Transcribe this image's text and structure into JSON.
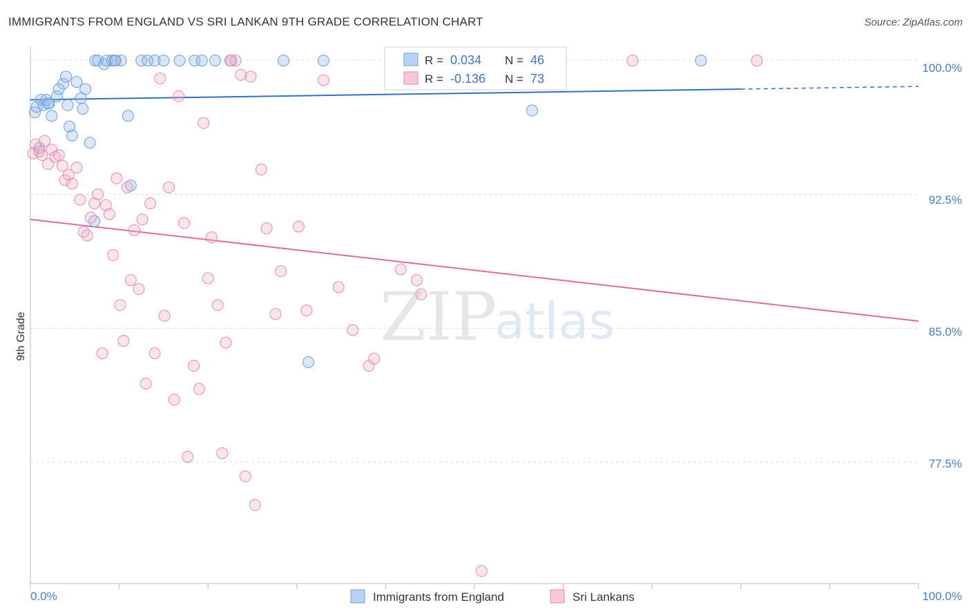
{
  "title": "IMMIGRANTS FROM ENGLAND VS SRI LANKAN 9TH GRADE CORRELATION CHART",
  "source": "Source: ZipAtlas.com",
  "watermark": {
    "zip": "ZIP",
    "atlas": "atlas"
  },
  "colors": {
    "blue": "#6f9fe0",
    "blue_line": "#2f6fcc",
    "pink": "#ea8aac",
    "pink_line": "#e0699a",
    "grid": "#dddddd"
  },
  "chart_data": {
    "type": "scatter",
    "title": "IMMIGRANTS FROM ENGLAND VS SRI LANKAN 9TH GRADE CORRELATION CHART",
    "xlabel": "",
    "ylabel": "9th Grade",
    "xlim": [
      0,
      100
    ],
    "ylim": [
      70.7,
      100.8
    ],
    "x_tick_labels": [
      "0.0%",
      "100.0%"
    ],
    "y_ticks": [
      100.0,
      92.5,
      85.0,
      77.5
    ],
    "y_tick_labels": [
      "100.0%",
      "92.5%",
      "85.0%",
      "77.5%"
    ],
    "legend_position": "top-center",
    "legend_bottom": [
      "Immigrants from England",
      "Sri Lankans"
    ],
    "stats": [
      {
        "r_label": "R = ",
        "r_value": "0.034",
        "n_label": "N = ",
        "n_value": "46"
      },
      {
        "r_label": "R = ",
        "r_value": "-0.136",
        "n_label": "N = ",
        "n_value": "73"
      }
    ],
    "series": [
      {
        "name": "Immigrants from England",
        "color": "#6f9fe0",
        "trend": {
          "x0": 0,
          "y0": 97.8,
          "x1": 80,
          "y1": 98.4,
          "dash_to": 100,
          "dash_y": 98.55
        },
        "points": [
          [
            0.5,
            97.1
          ],
          [
            0.7,
            97.4
          ],
          [
            1.0,
            95.1
          ],
          [
            1.2,
            97.8
          ],
          [
            1.5,
            97.5
          ],
          [
            1.8,
            97.8
          ],
          [
            2.1,
            97.6
          ],
          [
            2.4,
            96.9
          ],
          [
            3.0,
            98.0
          ],
          [
            3.2,
            98.4
          ],
          [
            3.7,
            98.7
          ],
          [
            4.0,
            99.1
          ],
          [
            4.2,
            97.5
          ],
          [
            4.4,
            96.3
          ],
          [
            4.7,
            95.8
          ],
          [
            5.2,
            98.8
          ],
          [
            5.7,
            97.9
          ],
          [
            5.9,
            97.3
          ],
          [
            6.2,
            98.4
          ],
          [
            6.7,
            95.4
          ],
          [
            7.3,
            100.0
          ],
          [
            7.6,
            100.0
          ],
          [
            8.3,
            99.8
          ],
          [
            8.6,
            100.0
          ],
          [
            9.2,
            100.0
          ],
          [
            9.6,
            100.0
          ],
          [
            10.2,
            100.0
          ],
          [
            11.0,
            96.9
          ],
          [
            11.3,
            93.0
          ],
          [
            12.5,
            100.0
          ],
          [
            13.2,
            100.0
          ],
          [
            14.0,
            100.0
          ],
          [
            15.0,
            100.0
          ],
          [
            16.8,
            100.0
          ],
          [
            18.5,
            100.0
          ],
          [
            19.3,
            100.0
          ],
          [
            20.8,
            100.0
          ],
          [
            22.6,
            100.0
          ],
          [
            28.5,
            100.0
          ],
          [
            33.0,
            100.0
          ],
          [
            7.2,
            91.0
          ],
          [
            31.3,
            83.1
          ],
          [
            56.5,
            97.2
          ],
          [
            75.5,
            100.0
          ],
          [
            2.0,
            97.6
          ],
          [
            9.5,
            100.0
          ]
        ]
      },
      {
        "name": "Sri Lankans",
        "color": "#ea8aac",
        "trend": {
          "x0": 0,
          "y0": 91.1,
          "x1": 100,
          "y1": 85.4
        },
        "points": [
          [
            0.3,
            94.8
          ],
          [
            0.6,
            95.3
          ],
          [
            1.0,
            94.9
          ],
          [
            1.3,
            94.7
          ],
          [
            1.6,
            95.5
          ],
          [
            2.0,
            94.2
          ],
          [
            2.4,
            95.0
          ],
          [
            2.8,
            94.6
          ],
          [
            3.2,
            94.7
          ],
          [
            3.6,
            94.1
          ],
          [
            3.9,
            93.3
          ],
          [
            4.3,
            93.6
          ],
          [
            4.7,
            93.1
          ],
          [
            5.2,
            94.0
          ],
          [
            5.6,
            92.2
          ],
          [
            6.0,
            90.4
          ],
          [
            6.4,
            90.2
          ],
          [
            6.8,
            91.2
          ],
          [
            7.2,
            92.0
          ],
          [
            7.6,
            92.5
          ],
          [
            8.1,
            83.6
          ],
          [
            8.5,
            91.9
          ],
          [
            8.9,
            91.4
          ],
          [
            9.3,
            89.1
          ],
          [
            9.7,
            93.4
          ],
          [
            10.1,
            86.3
          ],
          [
            10.5,
            84.3
          ],
          [
            10.9,
            92.9
          ],
          [
            11.3,
            87.7
          ],
          [
            11.7,
            90.5
          ],
          [
            12.2,
            87.2
          ],
          [
            12.6,
            91.1
          ],
          [
            13.0,
            81.9
          ],
          [
            13.5,
            92.0
          ],
          [
            14.0,
            83.6
          ],
          [
            14.6,
            99.0
          ],
          [
            15.1,
            85.7
          ],
          [
            15.6,
            92.9
          ],
          [
            16.2,
            81.0
          ],
          [
            16.7,
            98.0
          ],
          [
            17.3,
            90.9
          ],
          [
            17.7,
            77.8
          ],
          [
            18.4,
            82.9
          ],
          [
            19.0,
            81.6
          ],
          [
            19.5,
            96.5
          ],
          [
            20.0,
            87.8
          ],
          [
            20.4,
            90.1
          ],
          [
            21.1,
            86.3
          ],
          [
            21.6,
            78.0
          ],
          [
            22.0,
            84.2
          ],
          [
            22.5,
            100.0
          ],
          [
            23.1,
            100.0
          ],
          [
            23.7,
            99.2
          ],
          [
            24.2,
            76.7
          ],
          [
            24.8,
            99.1
          ],
          [
            25.3,
            75.1
          ],
          [
            26.0,
            93.9
          ],
          [
            26.6,
            90.6
          ],
          [
            27.6,
            85.8
          ],
          [
            28.2,
            88.2
          ],
          [
            30.2,
            90.7
          ],
          [
            31.1,
            86.0
          ],
          [
            33.0,
            98.9
          ],
          [
            34.7,
            87.3
          ],
          [
            36.3,
            84.9
          ],
          [
            38.1,
            82.9
          ],
          [
            38.7,
            83.3
          ],
          [
            41.7,
            88.3
          ],
          [
            43.5,
            87.7
          ],
          [
            44.0,
            86.9
          ],
          [
            50.8,
            71.4
          ],
          [
            67.8,
            100.0
          ],
          [
            81.8,
            100.0
          ]
        ]
      }
    ]
  }
}
